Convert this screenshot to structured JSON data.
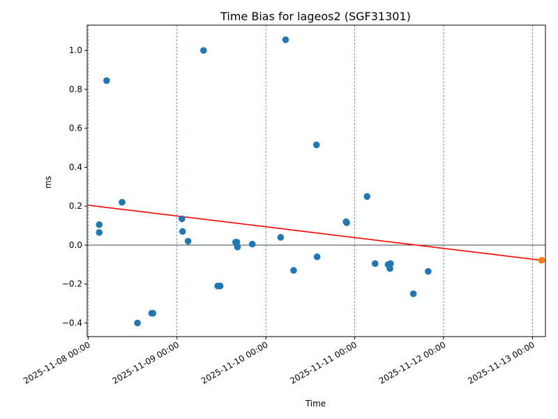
{
  "chart_data": {
    "type": "scatter",
    "title": "Time Bias for lageos2 (SGF31301)",
    "xlabel": "Time",
    "ylabel": "ms",
    "x_origin": "2025-11-08 00:00",
    "xlim": [
      "2025-11-07 23:45",
      "2025-11-13 03:30"
    ],
    "ylim": [
      -0.47,
      1.13
    ],
    "x_ticks": [
      "2025-11-08 00:00",
      "2025-11-09 00:00",
      "2025-11-10 00:00",
      "2025-11-11 00:00",
      "2025-11-12 00:00",
      "2025-11-13 00:00"
    ],
    "y_ticks": [
      -0.4,
      -0.2,
      0.0,
      0.2,
      0.4,
      0.6,
      0.8,
      1.0
    ],
    "y_tick_labels": [
      "−0.4",
      "−0.2",
      "0.0",
      "0.2",
      "0.4",
      "0.6",
      "0.8",
      "1.0"
    ],
    "vertical_gridlines": "dashed at each midnight",
    "zero_line": true,
    "series": [
      {
        "color": "#1f77b4",
        "points": [
          {
            "x": "2025-11-08 03:00",
            "y": 0.105
          },
          {
            "x": "2025-11-08 03:00",
            "y": 0.065
          },
          {
            "x": "2025-11-08 05:00",
            "y": 0.845
          },
          {
            "x": "2025-11-08 09:10",
            "y": 0.22
          },
          {
            "x": "2025-11-08 13:20",
            "y": -0.4
          },
          {
            "x": "2025-11-08 17:10",
            "y": -0.35
          },
          {
            "x": "2025-11-08 17:30",
            "y": -0.35
          },
          {
            "x": "2025-11-09 01:20",
            "y": 0.135
          },
          {
            "x": "2025-11-09 01:30",
            "y": 0.07
          },
          {
            "x": "2025-11-09 03:00",
            "y": 0.02
          },
          {
            "x": "2025-11-09 07:10",
            "y": 1.0
          },
          {
            "x": "2025-11-09 11:00",
            "y": -0.21
          },
          {
            "x": "2025-11-09 11:40",
            "y": -0.21
          },
          {
            "x": "2025-11-09 15:50",
            "y": 0.015
          },
          {
            "x": "2025-11-09 16:10",
            "y": 0.015
          },
          {
            "x": "2025-11-09 16:20",
            "y": -0.01
          },
          {
            "x": "2025-11-09 20:20",
            "y": 0.005
          },
          {
            "x": "2025-11-10 04:00",
            "y": 0.04
          },
          {
            "x": "2025-11-10 05:20",
            "y": 1.055
          },
          {
            "x": "2025-11-10 07:30",
            "y": -0.13
          },
          {
            "x": "2025-11-10 13:40",
            "y": 0.515
          },
          {
            "x": "2025-11-10 13:50",
            "y": -0.06
          },
          {
            "x": "2025-11-10 21:40",
            "y": 0.12
          },
          {
            "x": "2025-11-10 21:50",
            "y": 0.115
          },
          {
            "x": "2025-11-11 03:20",
            "y": 0.25
          },
          {
            "x": "2025-11-11 05:30",
            "y": -0.095
          },
          {
            "x": "2025-11-11 09:00",
            "y": -0.1
          },
          {
            "x": "2025-11-11 09:40",
            "y": -0.095
          },
          {
            "x": "2025-11-11 09:30",
            "y": -0.12
          },
          {
            "x": "2025-11-11 15:50",
            "y": -0.25
          },
          {
            "x": "2025-11-11 19:50",
            "y": -0.135
          }
        ]
      },
      {
        "color": "#ff7f0e",
        "points": [
          {
            "x": "2025-11-13 02:30",
            "y": -0.078
          }
        ]
      }
    ],
    "trend_line": {
      "color": "#ff0000",
      "start": {
        "x": "2025-11-08 00:00",
        "y": 0.205
      },
      "end": {
        "x": "2025-11-13 02:30",
        "y": -0.078
      }
    }
  }
}
